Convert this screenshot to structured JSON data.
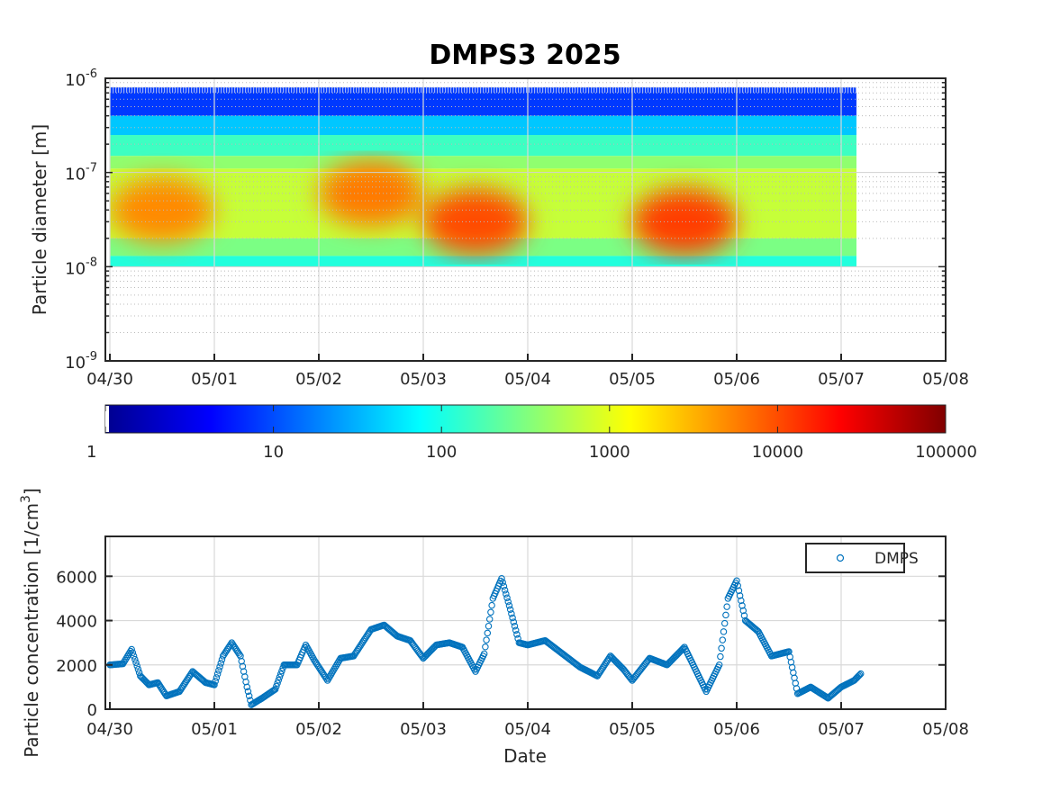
{
  "title": "DMPS3 2025",
  "chart_data": [
    {
      "type": "heatmap",
      "title": "DMPS3 2025",
      "ylabel": "Particle diameter [m]",
      "x_ticks": [
        "04/30",
        "05/01",
        "05/02",
        "05/03",
        "05/04",
        "05/05",
        "05/06",
        "05/07",
        "05/08"
      ],
      "xlim": [
        "04/30",
        "05/08"
      ],
      "y_scale": "log",
      "y_ticks": [
        "10^-9",
        "10^-8",
        "10^-7",
        "10^-6"
      ],
      "ylim": [
        1e-09,
        1e-06
      ],
      "data_extent": {
        "x": [
          "04/30",
          "05/07 04:30"
        ],
        "diameter": [
          1e-08,
          8e-07
        ]
      },
      "grid": true,
      "colorbar": {
        "scale": "log",
        "colormap": "jet",
        "ticks": [
          "1",
          "10",
          "100",
          "1000",
          "10000",
          "100000"
        ],
        "range": [
          1,
          100000
        ]
      },
      "features": [
        {
          "period": "04/30 – 05/01",
          "peak_diameter": 4e-08,
          "level": 5000
        },
        {
          "period": "05/02 – 05/03",
          "peak_diameter": 6e-08,
          "level": 6000
        },
        {
          "period": "05/03 – 05/04",
          "peak_diameter": 3e-08,
          "level": 10000
        },
        {
          "period": "05/05 – 05/06",
          "peak_diameter": 3e-08,
          "level": 12000
        }
      ]
    },
    {
      "type": "scatter",
      "xlabel": "Date",
      "ylabel": "Particle concentration [1/cm3]",
      "ylabel_parts": {
        "text": "Particle concentration [1/cm",
        "sup": "3",
        "close": "]"
      },
      "x_ticks": [
        "04/30",
        "05/01",
        "05/02",
        "05/03",
        "05/04",
        "05/05",
        "05/06",
        "05/07",
        "05/08"
      ],
      "xlim": [
        "04/30",
        "05/08"
      ],
      "y_ticks": [
        "0",
        "2000",
        "4000",
        "6000"
      ],
      "ylim": [
        0,
        7800
      ],
      "grid": true,
      "legend": {
        "position": "top-right",
        "entries": [
          "DMPS"
        ]
      },
      "series": [
        {
          "name": "DMPS",
          "color": "#0072bd",
          "marker": "open-circle",
          "points": [
            [
              "04/30 00:00",
              2000
            ],
            [
              "04/30 03:00",
              2050
            ],
            [
              "04/30 05:00",
              2700
            ],
            [
              "04/30 07:00",
              1500
            ],
            [
              "04/30 09:00",
              1100
            ],
            [
              "04/30 11:00",
              1200
            ],
            [
              "04/30 13:00",
              600
            ],
            [
              "04/30 16:00",
              800
            ],
            [
              "04/30 19:00",
              1700
            ],
            [
              "04/30 22:00",
              1200
            ],
            [
              "05/01 00:00",
              1100
            ],
            [
              "05/01 02:00",
              2400
            ],
            [
              "05/01 04:00",
              3000
            ],
            [
              "05/01 06:00",
              2400
            ],
            [
              "05/01 07:30",
              1000
            ],
            [
              "05/01 08:30",
              200
            ],
            [
              "05/01 11:00",
              500
            ],
            [
              "05/01 14:00",
              900
            ],
            [
              "05/01 16:00",
              2000
            ],
            [
              "05/01 19:00",
              2000
            ],
            [
              "05/01 21:00",
              2900
            ],
            [
              "05/01 23:00",
              2200
            ],
            [
              "05/02 02:00",
              1300
            ],
            [
              "05/02 05:00",
              2300
            ],
            [
              "05/02 08:00",
              2400
            ],
            [
              "05/02 12:00",
              3600
            ],
            [
              "05/02 15:00",
              3800
            ],
            [
              "05/02 18:00",
              3300
            ],
            [
              "05/02 21:00",
              3100
            ],
            [
              "05/03 00:00",
              2300
            ],
            [
              "05/03 03:00",
              2900
            ],
            [
              "05/03 06:00",
              3000
            ],
            [
              "05/03 09:00",
              2800
            ],
            [
              "05/03 12:00",
              1700
            ],
            [
              "05/03 14:00",
              2500
            ],
            [
              "05/03 16:00",
              5000
            ],
            [
              "05/03 18:00",
              5900
            ],
            [
              "05/03 20:00",
              4500
            ],
            [
              "05/03 22:00",
              3000
            ],
            [
              "05/04 00:00",
              2900
            ],
            [
              "05/04 04:00",
              3100
            ],
            [
              "05/04 08:00",
              2500
            ],
            [
              "05/04 12:00",
              1900
            ],
            [
              "05/04 16:00",
              1500
            ],
            [
              "05/04 19:00",
              2400
            ],
            [
              "05/04 22:00",
              1800
            ],
            [
              "05/05 00:00",
              1300
            ],
            [
              "05/05 04:00",
              2300
            ],
            [
              "05/05 08:00",
              2000
            ],
            [
              "05/05 12:00",
              2800
            ],
            [
              "05/05 14:00",
              2000
            ],
            [
              "05/05 17:00",
              800
            ],
            [
              "05/05 20:00",
              2000
            ],
            [
              "05/05 22:00",
              5000
            ],
            [
              "05/06 00:00",
              5800
            ],
            [
              "05/06 02:00",
              4000
            ],
            [
              "05/06 05:00",
              3500
            ],
            [
              "05/06 08:00",
              2400
            ],
            [
              "05/06 12:00",
              2600
            ],
            [
              "05/06 14:00",
              700
            ],
            [
              "05/06 17:00",
              1000
            ],
            [
              "05/06 21:00",
              500
            ],
            [
              "05/07 00:00",
              1000
            ],
            [
              "05/07 03:00",
              1300
            ],
            [
              "05/07 04:30",
              1600
            ]
          ]
        }
      ]
    }
  ]
}
